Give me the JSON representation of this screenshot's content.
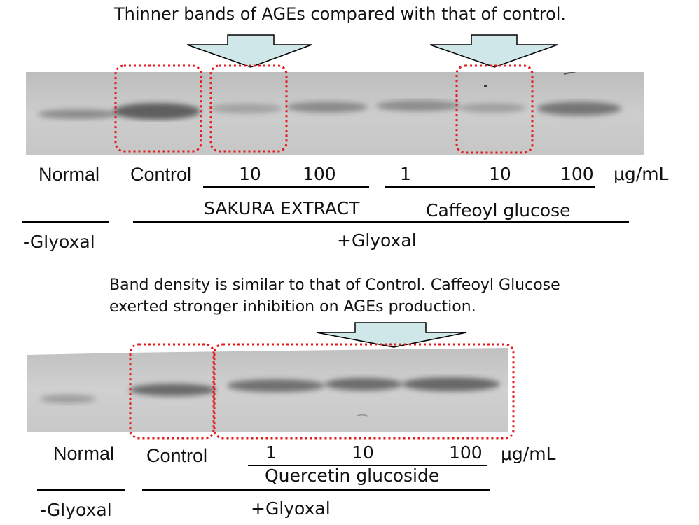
{
  "captions": {
    "top": "Thinner bands of AGEs compared with that of control.",
    "middle": "Band density is similar to that of Control. Caffeoyl Glucose\nexerted stronger inhibition on AGEs production."
  },
  "blot1": {
    "lanes": [
      "Normal",
      "Control",
      "10",
      "100",
      "1",
      "10",
      "100"
    ],
    "unit": "μg/mL",
    "groups": [
      "SAKURA EXTRACT",
      "Caffeoyl glucose"
    ],
    "conditions": [
      "-Glyoxal",
      "+Glyoxal"
    ]
  },
  "blot2": {
    "lanes": [
      "Normal",
      "Control",
      "1",
      "10",
      "100"
    ],
    "unit": "μg/mL",
    "groups": [
      "Quercetin glucoside"
    ],
    "conditions": [
      "-Glyoxal",
      "+Glyoxal"
    ]
  },
  "colors": {
    "arrow_fill": "#cfe7e8",
    "highlight": "#e41a1a",
    "blot_bg": "#c9c9c9",
    "band": "#555555"
  }
}
